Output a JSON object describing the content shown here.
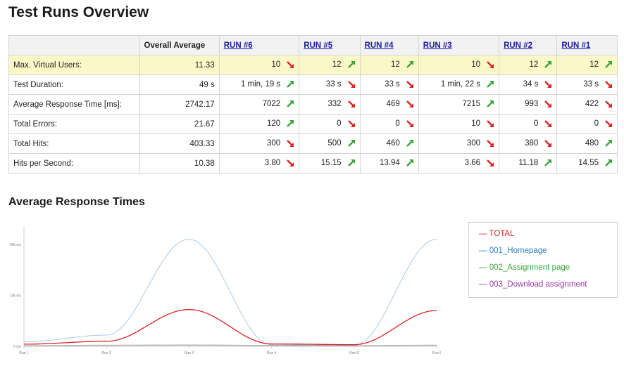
{
  "page": {
    "title": "Test Runs Overview",
    "chart_section_title": "Average Response Times"
  },
  "table": {
    "columns": [
      "",
      "Overall Average",
      "RUN #6",
      "RUN #5",
      "RUN #4",
      "RUN #3",
      "RUN #2",
      "RUN #1"
    ],
    "rows": [
      {
        "label": "Max. Virtual Users:",
        "overall": "11.33",
        "values": [
          "10",
          "12",
          "12",
          "10",
          "12",
          "12"
        ],
        "trend": [
          "down",
          "up",
          "up",
          "down",
          "up",
          "up"
        ]
      },
      {
        "label": "Test Duration:",
        "overall": "49 s",
        "values": [
          "1 min, 19 s",
          "33 s",
          "33 s",
          "1 min, 22 s",
          "34 s",
          "33 s"
        ],
        "trend": [
          "up",
          "down",
          "down",
          "up",
          "down",
          "down"
        ]
      },
      {
        "label": "Average Response Time [ms]:",
        "overall": "2742.17",
        "values": [
          "7022",
          "332",
          "469",
          "7215",
          "993",
          "422"
        ],
        "trend": [
          "up",
          "down",
          "down",
          "up",
          "down",
          "down"
        ]
      },
      {
        "label": "Total Errors:",
        "overall": "21.67",
        "values": [
          "120",
          "0",
          "0",
          "10",
          "0",
          "0"
        ],
        "trend": [
          "up",
          "down",
          "down",
          "down",
          "down",
          "down"
        ]
      },
      {
        "label": "Total Hits:",
        "overall": "403.33",
        "values": [
          "300",
          "500",
          "460",
          "300",
          "380",
          "480"
        ],
        "trend": [
          "down",
          "up",
          "up",
          "down",
          "down",
          "up"
        ]
      },
      {
        "label": "Hits per Second:",
        "overall": "10.38",
        "values": [
          "3.80",
          "15.15",
          "13.94",
          "3.66",
          "11.18",
          "14.55"
        ],
        "trend": [
          "down",
          "up",
          "up",
          "down",
          "up",
          "up"
        ]
      }
    ]
  },
  "colors": {
    "total": "#dd2222",
    "homepage": "#2e7fc0",
    "assignment": "#3aa53a",
    "download": "#9a3aa8",
    "trend_up": "#3aa53a",
    "trend_down": "#dd2222"
  },
  "chart_data": {
    "type": "line",
    "title": "Average Response Times",
    "categories": [
      "Run 1",
      "Run 2",
      "Run 3",
      "Run 4",
      "Run 5",
      "Run 6"
    ],
    "y_tick_labels": [
      "0 ms",
      "10k ms",
      "20k ms"
    ],
    "ylim": [
      0,
      23000
    ],
    "grid": false,
    "legend_position": "right",
    "series": [
      {
        "name": "TOTAL",
        "color": "#dd2222",
        "values": [
          422,
          993,
          7215,
          469,
          332,
          7022
        ]
      },
      {
        "name": "001_Homepage",
        "color": "#2e7fc0",
        "values": [
          900,
          2200,
          21000,
          300,
          200,
          21000
        ]
      },
      {
        "name": "002_Assignment page",
        "color": "#3aa53a",
        "values": [
          150,
          250,
          300,
          200,
          150,
          250
        ]
      },
      {
        "name": "003_Download assignment",
        "color": "#9a3aa8",
        "values": [
          100,
          150,
          200,
          150,
          100,
          200
        ]
      }
    ]
  }
}
